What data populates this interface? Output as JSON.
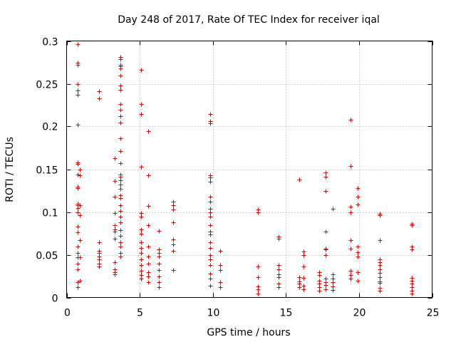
{
  "chart_data": {
    "type": "scatter",
    "title": "Day 248 of 2017, Rate Of TEC Index for receiver iqal",
    "xlabel": "GPS time / hours",
    "ylabel": "ROTI / TECUs",
    "xlim": [
      0,
      25
    ],
    "ylim": [
      0,
      0.3
    ],
    "xticks": [
      0,
      5,
      10,
      15,
      20,
      25
    ],
    "yticks": [
      0,
      0.05,
      0.1,
      0.15,
      0.2,
      0.25,
      0.3
    ],
    "xtick_labels": [
      "0",
      "5",
      "10",
      "15",
      "20",
      "25"
    ],
    "ytick_labels": [
      "0",
      "0.05",
      "0.1",
      "0.15",
      "0.2",
      "0.25",
      "0.3"
    ],
    "grid": true,
    "marker": "+",
    "color": "#e00000",
    "series": [
      {
        "name": "ROTI",
        "points": [
          [
            0.75,
            0.296
          ],
          [
            0.75,
            0.275
          ],
          [
            0.75,
            0.272
          ],
          [
            0.75,
            0.25
          ],
          [
            0.75,
            0.242
          ],
          [
            0.75,
            0.237
          ],
          [
            0.75,
            0.202
          ],
          [
            0.75,
            0.158
          ],
          [
            0.75,
            0.156
          ],
          [
            0.75,
            0.144
          ],
          [
            0.75,
            0.13
          ],
          [
            0.75,
            0.128
          ],
          [
            0.75,
            0.11
          ],
          [
            0.75,
            0.108
          ],
          [
            0.75,
            0.105
          ],
          [
            0.75,
            0.1
          ],
          [
            0.75,
            0.083
          ],
          [
            0.75,
            0.076
          ],
          [
            0.75,
            0.06
          ],
          [
            0.75,
            0.052
          ],
          [
            0.75,
            0.047
          ],
          [
            0.75,
            0.04
          ],
          [
            0.75,
            0.033
          ],
          [
            0.75,
            0.018
          ],
          [
            0.75,
            0.012
          ],
          [
            0.9,
            0.15
          ],
          [
            0.9,
            0.143
          ],
          [
            0.9,
            0.108
          ],
          [
            0.9,
            0.096
          ],
          [
            0.9,
            0.067
          ],
          [
            0.9,
            0.047
          ],
          [
            0.9,
            0.02
          ],
          [
            2.2,
            0.241
          ],
          [
            2.2,
            0.233
          ],
          [
            2.2,
            0.065
          ],
          [
            2.2,
            0.055
          ],
          [
            2.2,
            0.052
          ],
          [
            2.2,
            0.048
          ],
          [
            2.2,
            0.045
          ],
          [
            2.2,
            0.04
          ],
          [
            2.2,
            0.036
          ],
          [
            3.3,
            0.163
          ],
          [
            3.3,
            0.136
          ],
          [
            3.3,
            0.118
          ],
          [
            3.3,
            0.099
          ],
          [
            3.3,
            0.085
          ],
          [
            3.3,
            0.08
          ],
          [
            3.3,
            0.077
          ],
          [
            3.3,
            0.069
          ],
          [
            3.3,
            0.041
          ],
          [
            3.3,
            0.033
          ],
          [
            3.3,
            0.03
          ],
          [
            3.3,
            0.027
          ],
          [
            3.7,
            0.281
          ],
          [
            3.7,
            0.279
          ],
          [
            3.7,
            0.272
          ],
          [
            3.7,
            0.27
          ],
          [
            3.7,
            0.268
          ],
          [
            3.7,
            0.26
          ],
          [
            3.7,
            0.248
          ],
          [
            3.7,
            0.243
          ],
          [
            3.7,
            0.226
          ],
          [
            3.7,
            0.22
          ],
          [
            3.7,
            0.212
          ],
          [
            3.7,
            0.205
          ],
          [
            3.7,
            0.186
          ],
          [
            3.7,
            0.171
          ],
          [
            3.7,
            0.157
          ],
          [
            3.7,
            0.144
          ],
          [
            3.7,
            0.141
          ],
          [
            3.7,
            0.137
          ],
          [
            3.7,
            0.132
          ],
          [
            3.7,
            0.127
          ],
          [
            3.7,
            0.12
          ],
          [
            3.7,
            0.116
          ],
          [
            3.7,
            0.108
          ],
          [
            3.7,
            0.101
          ],
          [
            3.7,
            0.095
          ],
          [
            3.7,
            0.088
          ],
          [
            3.7,
            0.079
          ],
          [
            3.7,
            0.072
          ],
          [
            3.7,
            0.065
          ],
          [
            3.7,
            0.06
          ],
          [
            3.7,
            0.052
          ],
          [
            3.7,
            0.048
          ],
          [
            5.1,
            0.266
          ],
          [
            5.1,
            0.226
          ],
          [
            5.1,
            0.215
          ],
          [
            5.1,
            0.153
          ],
          [
            5.1,
            0.099
          ],
          [
            5.1,
            0.095
          ],
          [
            5.1,
            0.08
          ],
          [
            5.1,
            0.075
          ],
          [
            5.1,
            0.065
          ],
          [
            5.1,
            0.058
          ],
          [
            5.1,
            0.052
          ],
          [
            5.1,
            0.045
          ],
          [
            5.1,
            0.038
          ],
          [
            5.1,
            0.031
          ],
          [
            5.1,
            0.026
          ],
          [
            5.1,
            0.022
          ],
          [
            5.6,
            0.195
          ],
          [
            5.6,
            0.143
          ],
          [
            5.6,
            0.107
          ],
          [
            5.6,
            0.085
          ],
          [
            5.6,
            0.06
          ],
          [
            5.6,
            0.048
          ],
          [
            5.6,
            0.04
          ],
          [
            5.6,
            0.03
          ],
          [
            5.6,
            0.025
          ],
          [
            5.6,
            0.018
          ],
          [
            6.3,
            0.078
          ],
          [
            6.3,
            0.056
          ],
          [
            6.3,
            0.052
          ],
          [
            6.3,
            0.048
          ],
          [
            6.3,
            0.04
          ],
          [
            6.3,
            0.032
          ],
          [
            6.3,
            0.025
          ],
          [
            6.3,
            0.018
          ],
          [
            6.3,
            0.012
          ],
          [
            7.3,
            0.112
          ],
          [
            7.3,
            0.108
          ],
          [
            7.3,
            0.103
          ],
          [
            7.3,
            0.088
          ],
          [
            7.3,
            0.068
          ],
          [
            7.3,
            0.062
          ],
          [
            7.3,
            0.055
          ],
          [
            7.3,
            0.032
          ],
          [
            9.8,
            0.215
          ],
          [
            9.8,
            0.206
          ],
          [
            9.8,
            0.204
          ],
          [
            9.8,
            0.143
          ],
          [
            9.8,
            0.14
          ],
          [
            9.8,
            0.135
          ],
          [
            9.8,
            0.118
          ],
          [
            9.8,
            0.112
          ],
          [
            9.8,
            0.104
          ],
          [
            9.8,
            0.1
          ],
          [
            9.8,
            0.095
          ],
          [
            9.8,
            0.085
          ],
          [
            9.8,
            0.077
          ],
          [
            9.8,
            0.074
          ],
          [
            9.8,
            0.065
          ],
          [
            9.8,
            0.058
          ],
          [
            9.8,
            0.05
          ],
          [
            9.8,
            0.045
          ],
          [
            9.8,
            0.038
          ],
          [
            9.8,
            0.028
          ],
          [
            9.8,
            0.022
          ],
          [
            9.8,
            0.014
          ],
          [
            10.5,
            0.055
          ],
          [
            10.5,
            0.038
          ],
          [
            10.5,
            0.032
          ],
          [
            10.5,
            0.018
          ],
          [
            10.5,
            0.012
          ],
          [
            13.1,
            0.103
          ],
          [
            13.1,
            0.1
          ],
          [
            13.1,
            0.036
          ],
          [
            13.1,
            0.024
          ],
          [
            13.1,
            0.013
          ],
          [
            13.1,
            0.01
          ],
          [
            13.1,
            0.005
          ],
          [
            14.5,
            0.071
          ],
          [
            14.5,
            0.069
          ],
          [
            14.5,
            0.038
          ],
          [
            14.5,
            0.033
          ],
          [
            14.5,
            0.027
          ],
          [
            14.5,
            0.024
          ],
          [
            14.5,
            0.016
          ],
          [
            14.5,
            0.012
          ],
          [
            15.9,
            0.138
          ],
          [
            15.9,
            0.024
          ],
          [
            15.9,
            0.019
          ],
          [
            15.9,
            0.016
          ],
          [
            15.9,
            0.012
          ],
          [
            16.2,
            0.054
          ],
          [
            16.2,
            0.05
          ],
          [
            16.2,
            0.036
          ],
          [
            16.2,
            0.023
          ],
          [
            16.2,
            0.014
          ],
          [
            16.2,
            0.01
          ],
          [
            17.3,
            0.03
          ],
          [
            17.3,
            0.026
          ],
          [
            17.3,
            0.02
          ],
          [
            17.3,
            0.016
          ],
          [
            17.3,
            0.012
          ],
          [
            17.3,
            0.008
          ],
          [
            17.7,
            0.146
          ],
          [
            17.7,
            0.141
          ],
          [
            17.7,
            0.125
          ],
          [
            17.7,
            0.077
          ],
          [
            17.7,
            0.057
          ],
          [
            17.7,
            0.056
          ],
          [
            17.7,
            0.05
          ],
          [
            17.7,
            0.022
          ],
          [
            17.7,
            0.018
          ],
          [
            17.7,
            0.015
          ],
          [
            17.7,
            0.01
          ],
          [
            18.2,
            0.104
          ],
          [
            18.2,
            0.027
          ],
          [
            18.2,
            0.022
          ],
          [
            18.2,
            0.018
          ],
          [
            18.2,
            0.013
          ],
          [
            18.2,
            0.009
          ],
          [
            19.4,
            0.208
          ],
          [
            19.4,
            0.154
          ],
          [
            19.4,
            0.106
          ],
          [
            19.4,
            0.1
          ],
          [
            19.4,
            0.067
          ],
          [
            19.4,
            0.057
          ],
          [
            19.4,
            0.031
          ],
          [
            19.4,
            0.026
          ],
          [
            19.4,
            0.022
          ],
          [
            19.9,
            0.128
          ],
          [
            19.9,
            0.118
          ],
          [
            19.9,
            0.109
          ],
          [
            19.9,
            0.06
          ],
          [
            19.9,
            0.053
          ],
          [
            19.9,
            0.048
          ],
          [
            19.9,
            0.03
          ],
          [
            19.9,
            0.02
          ],
          [
            21.4,
            0.098
          ],
          [
            21.4,
            0.096
          ],
          [
            21.4,
            0.067
          ],
          [
            21.4,
            0.045
          ],
          [
            21.4,
            0.041
          ],
          [
            21.4,
            0.038
          ],
          [
            21.4,
            0.033
          ],
          [
            21.4,
            0.029
          ],
          [
            21.4,
            0.024
          ],
          [
            21.4,
            0.019
          ],
          [
            21.4,
            0.017
          ],
          [
            21.4,
            0.011
          ],
          [
            21.4,
            0.008
          ],
          [
            23.6,
            0.086
          ],
          [
            23.6,
            0.085
          ],
          [
            23.6,
            0.06
          ],
          [
            23.6,
            0.056
          ],
          [
            23.6,
            0.023
          ],
          [
            23.6,
            0.02
          ],
          [
            23.6,
            0.016
          ],
          [
            23.6,
            0.012
          ],
          [
            23.6,
            0.008
          ],
          [
            23.6,
            0.005
          ]
        ]
      }
    ]
  }
}
